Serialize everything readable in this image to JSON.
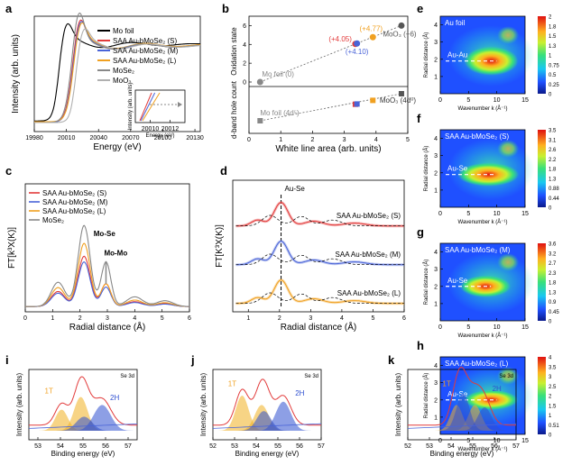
{
  "chart_data": [
    {
      "panel": "a",
      "type": "line",
      "xlabel": "Energy (eV)",
      "ylabel": "Intensity (arb. units)",
      "xticks": [
        19980,
        20010,
        20040,
        20070,
        20100,
        20130
      ],
      "xlim": [
        19980,
        20135
      ],
      "series": [
        {
          "name": "Mo foil",
          "color": "#000000"
        },
        {
          "name": "SAA Au-bMoSe₂ (S)",
          "color": "#e23b3b"
        },
        {
          "name": "SAA Au-bMoSe₂ (M)",
          "color": "#4a64d8"
        },
        {
          "name": "SAA Au-bMoSe₂ (L)",
          "color": "#f0a020"
        },
        {
          "name": "MoSe₂",
          "color": "#888888"
        },
        {
          "name": "MoO₃",
          "color": "#b0b0b0"
        }
      ],
      "inset": {
        "xlabel": "Energy (eV)",
        "ylabel": "Intensity (arb. units)",
        "xticks": [
          20010,
          20012
        ]
      }
    },
    {
      "panel": "b",
      "type": "scatter",
      "xlabel": "White line area (arb. units)",
      "ylabel_top": "Oxidation state",
      "ylabel_bottom": "d-band hole count",
      "xticks": [
        0,
        1,
        2,
        3,
        4,
        5
      ],
      "xlim": [
        0,
        5
      ],
      "top": {
        "ylim": [
          0,
          7
        ],
        "yticks": [
          0,
          2,
          4,
          6
        ],
        "points": [
          {
            "x": 0.35,
            "y": 0,
            "label": "Mo foil (0)",
            "color": "#888888"
          },
          {
            "x": 3.35,
            "y": 4.05,
            "label": "(+4.05)",
            "color": "#e23b3b"
          },
          {
            "x": 3.4,
            "y": 4.1,
            "label": "(+4.10)",
            "color": "#4a64d8"
          },
          {
            "x": 3.9,
            "y": 4.77,
            "label": "(+4.77)",
            "color": "#f0a020"
          },
          {
            "x": 4.8,
            "y": 6,
            "label": "MoO₃ (+6)",
            "color": "#555555"
          }
        ]
      },
      "bottom": {
        "points": [
          {
            "x": 0.35,
            "y": 2,
            "label": "Mo foil (4d⁵)",
            "color": "#888888"
          },
          {
            "x": 3.35,
            "y": 5.05,
            "label": "",
            "color": "#e23b3b"
          },
          {
            "x": 3.4,
            "y": 5.1,
            "label": "",
            "color": "#4a64d8"
          },
          {
            "x": 3.9,
            "y": 5.77,
            "label": "",
            "color": "#f0a020"
          },
          {
            "x": 4.8,
            "y": 7,
            "label": "MoO₃ (4d⁰)",
            "color": "#555555"
          }
        ]
      }
    },
    {
      "panel": "c",
      "type": "line",
      "xlabel": "Radial distance (Å)",
      "ylabel": "FT[k³X(K)]",
      "xticks": [
        0,
        1,
        2,
        3,
        4,
        5,
        6
      ],
      "xlim": [
        0,
        6
      ],
      "series": [
        {
          "name": "SAA Au-bMoSe₂ (S)",
          "color": "#e23b3b"
        },
        {
          "name": "SAA Au-bMoSe₂ (M)",
          "color": "#4a64d8"
        },
        {
          "name": "SAA Au-bMoSe₂ (L)",
          "color": "#f0a020"
        },
        {
          "name": "MoSe₂",
          "color": "#888888"
        }
      ],
      "annotations": [
        "Mo-Se",
        "Mo-Mo"
      ]
    },
    {
      "panel": "d",
      "type": "line",
      "xlabel": "Radial distance (Å)",
      "ylabel": "FT[K³X(K)]",
      "xticks": [
        1,
        2,
        3,
        4,
        5,
        6
      ],
      "xlim": [
        0.5,
        6
      ],
      "annotations": [
        "Au-Se"
      ],
      "series": [
        {
          "name": "SAA Au-bMoSe₂ (S)",
          "color": "#e23b3b"
        },
        {
          "name": "SAA Au-bMoSe₂ (M)",
          "color": "#4a64d8"
        },
        {
          "name": "SAA Au-bMoSe₂ (L)",
          "color": "#f0a020"
        }
      ]
    },
    {
      "panel": "e",
      "type": "heatmap",
      "title": "Au foil",
      "xlabel": "Wavenumber k (Å⁻¹)",
      "ylabel": "Radial distance (Å)",
      "xticks": [
        0,
        5,
        10,
        15
      ],
      "yticks": [
        1,
        2,
        3,
        4
      ],
      "annotation": "Au-Au",
      "colorbar": [
        2.0,
        1.8,
        1.5,
        1.3,
        1.0,
        0.75,
        0.5,
        0.25,
        0.0
      ]
    },
    {
      "panel": "f",
      "type": "heatmap",
      "title": "SAA Au-bMoSe₂ (S)",
      "xlabel": "Wavenumber k (Å⁻¹)",
      "ylabel": "Radial distance (Å)",
      "xticks": [
        0,
        5,
        10,
        15
      ],
      "yticks": [
        1,
        2,
        3,
        4
      ],
      "annotation": "Au-Se",
      "colorbar": [
        3.5,
        3.1,
        2.6,
        2.2,
        1.8,
        1.3,
        0.88,
        0.44,
        0.0
      ]
    },
    {
      "panel": "g",
      "type": "heatmap",
      "title": "SAA Au-bMoSe₂ (M)",
      "xlabel": "Wavenumber k (Å⁻¹)",
      "ylabel": "Radial distance (Å)",
      "xticks": [
        0,
        5,
        10,
        15
      ],
      "yticks": [
        1,
        2,
        3,
        4
      ],
      "annotation": "Au-Se",
      "colorbar": [
        3.6,
        3.2,
        2.7,
        2.3,
        1.8,
        1.3,
        0.9,
        0.45,
        0.0
      ]
    },
    {
      "panel": "h",
      "type": "heatmap",
      "title": "SAA Au-bMoSe₂ (L)",
      "xlabel": "Wavenumber k (Å⁻¹)",
      "ylabel": "Radial distance (Å)",
      "xticks": [
        0,
        5,
        10,
        15
      ],
      "yticks": [
        1,
        2,
        3,
        4
      ],
      "annotation": "Au-Se",
      "colorbar": [
        4.0,
        3.5,
        3.0,
        2.5,
        2.0,
        1.5,
        1.0,
        0.51,
        0.0
      ]
    },
    {
      "panel": "i",
      "type": "area",
      "title": "Se 3d",
      "xlabel": "Binding energy (eV)",
      "ylabel": "Intensity (arb. units)",
      "xticks": [
        53,
        54,
        55,
        56,
        57
      ],
      "xlim": [
        52.6,
        57.4
      ],
      "components": [
        "1T",
        "2H"
      ]
    },
    {
      "panel": "j",
      "type": "area",
      "title": "Se 3d",
      "xlabel": "Binding energy (eV)",
      "ylabel": "Intensity (arb. units)",
      "xticks": [
        52,
        53,
        54,
        55,
        56,
        57
      ],
      "xlim": [
        52,
        57
      ],
      "components": [
        "1T",
        "2H"
      ]
    },
    {
      "panel": "k",
      "type": "area",
      "title": "Se 3d",
      "xlabel": "Binding energy (eV)",
      "ylabel": "Intensity (arb. units)",
      "xticks": [
        52,
        53,
        54,
        55,
        56,
        57
      ],
      "xlim": [
        52,
        57
      ],
      "components": [
        "1T",
        "2H"
      ]
    }
  ]
}
